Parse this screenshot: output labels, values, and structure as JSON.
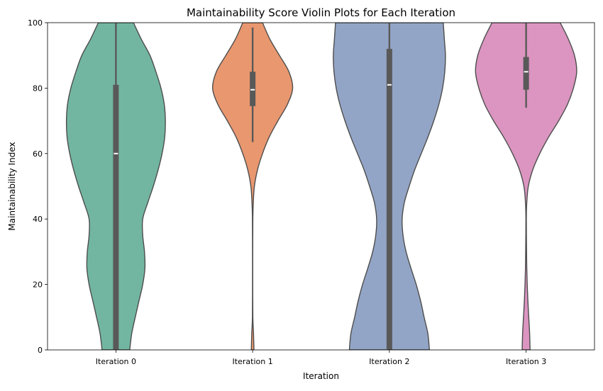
{
  "chart_data": {
    "type": "violin",
    "title": "Maintainability Score Violin Plots for Each Iteration",
    "xlabel": "Iteration",
    "ylabel": "Maintainability Index",
    "ylim": [
      0,
      100
    ],
    "yticks": [
      0,
      20,
      40,
      60,
      80,
      100
    ],
    "grid": false,
    "legend": "none",
    "categories": [
      "Iteration 0",
      "Iteration 1",
      "Iteration 2",
      "Iteration 3"
    ],
    "series": [
      {
        "color": "#72b6a1",
        "whisker_low": 0,
        "q1": 0,
        "median": 60,
        "q3": 81,
        "whisker_high": 100,
        "density": [
          [
            0,
            0.63
          ],
          [
            5,
            0.72
          ],
          [
            10,
            0.88
          ],
          [
            15,
            1.05
          ],
          [
            20,
            1.22
          ],
          [
            25,
            1.32
          ],
          [
            30,
            1.3
          ],
          [
            35,
            1.22
          ],
          [
            40,
            1.22
          ],
          [
            45,
            1.45
          ],
          [
            50,
            1.7
          ],
          [
            55,
            1.92
          ],
          [
            60,
            2.1
          ],
          [
            65,
            2.22
          ],
          [
            70,
            2.25
          ],
          [
            75,
            2.2
          ],
          [
            80,
            2.05
          ],
          [
            85,
            1.82
          ],
          [
            90,
            1.55
          ],
          [
            95,
            1.15
          ],
          [
            100,
            0.8
          ]
        ]
      },
      {
        "color": "#e9976f",
        "whisker_low": 63.5,
        "q1": 74.5,
        "median": 79.5,
        "q3": 85,
        "whisker_high": 98.5,
        "density": [
          [
            0,
            0.06
          ],
          [
            5,
            0.04
          ],
          [
            10,
            0.01
          ],
          [
            20,
            0.005
          ],
          [
            30,
            0.005
          ],
          [
            40,
            0.01
          ],
          [
            45,
            0.03
          ],
          [
            50,
            0.08
          ],
          [
            55,
            0.22
          ],
          [
            60,
            0.45
          ],
          [
            65,
            0.75
          ],
          [
            70,
            1.15
          ],
          [
            75,
            1.58
          ],
          [
            80,
            1.82
          ],
          [
            85,
            1.65
          ],
          [
            90,
            1.22
          ],
          [
            95,
            0.78
          ],
          [
            100,
            0.45
          ]
        ]
      },
      {
        "color": "#93a5c6",
        "whisker_low": 0,
        "q1": 0,
        "median": 81,
        "q3": 92,
        "whisker_high": 100,
        "density": [
          [
            0,
            1.82
          ],
          [
            5,
            1.75
          ],
          [
            10,
            1.58
          ],
          [
            15,
            1.42
          ],
          [
            20,
            1.22
          ],
          [
            25,
            0.98
          ],
          [
            30,
            0.76
          ],
          [
            35,
            0.62
          ],
          [
            40,
            0.58
          ],
          [
            45,
            0.68
          ],
          [
            50,
            0.9
          ],
          [
            55,
            1.15
          ],
          [
            60,
            1.45
          ],
          [
            65,
            1.75
          ],
          [
            70,
            2.02
          ],
          [
            75,
            2.25
          ],
          [
            80,
            2.42
          ],
          [
            85,
            2.52
          ],
          [
            90,
            2.55
          ],
          [
            95,
            2.5
          ],
          [
            100,
            2.45
          ]
        ]
      },
      {
        "color": "#db95c0",
        "whisker_low": 74,
        "q1": 79.5,
        "median": 85,
        "q3": 89.5,
        "whisker_high": 100,
        "density": [
          [
            0,
            0.18
          ],
          [
            5,
            0.16
          ],
          [
            10,
            0.12
          ],
          [
            15,
            0.08
          ],
          [
            20,
            0.05
          ],
          [
            25,
            0.03
          ],
          [
            30,
            0.02
          ],
          [
            40,
            0.01
          ],
          [
            45,
            0.03
          ],
          [
            50,
            0.1
          ],
          [
            55,
            0.3
          ],
          [
            60,
            0.62
          ],
          [
            65,
            1.02
          ],
          [
            70,
            1.48
          ],
          [
            75,
            1.88
          ],
          [
            80,
            2.15
          ],
          [
            85,
            2.3
          ],
          [
            90,
            2.2
          ],
          [
            95,
            1.92
          ],
          [
            100,
            1.55
          ]
        ]
      }
    ]
  }
}
